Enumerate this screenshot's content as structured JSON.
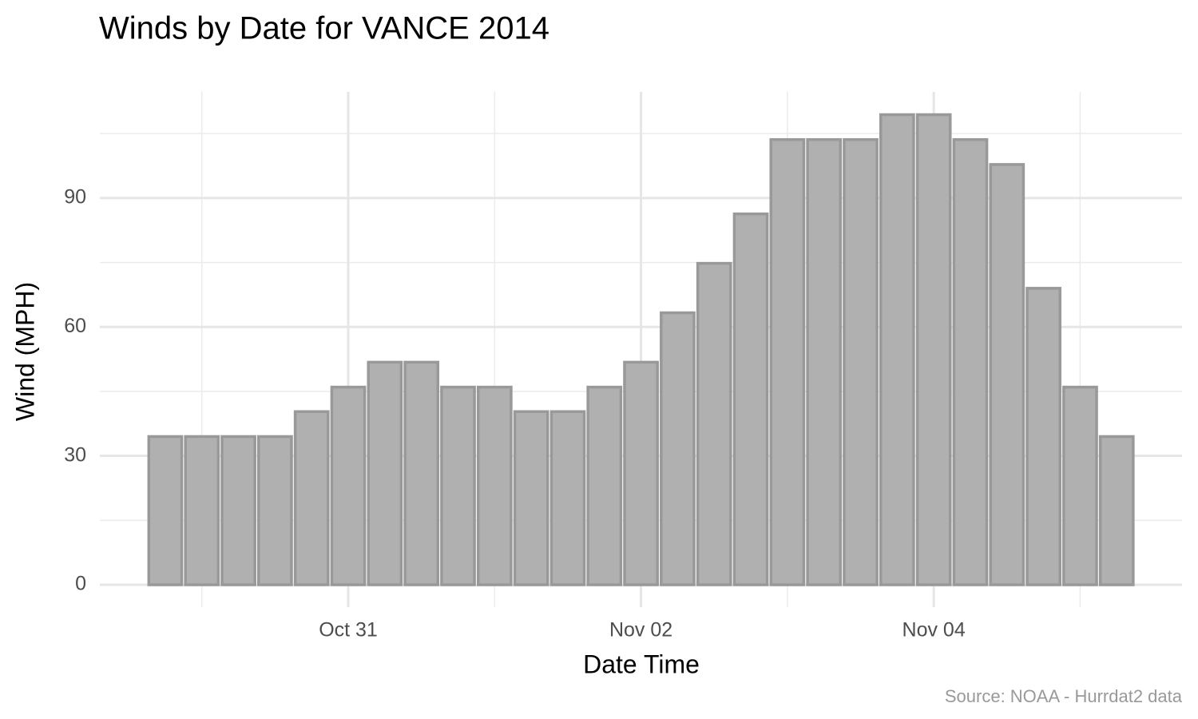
{
  "chart_data": {
    "type": "bar",
    "title": "Winds by Date for VANCE 2014",
    "x_label": "Date Time",
    "y_label": "Wind (MPH)",
    "caption": "Source: NOAA - Hurrdat2 data",
    "x": [
      -1.25,
      -1,
      -0.75,
      -0.5,
      -0.25,
      0,
      0.25,
      0.5,
      0.75,
      1,
      1.25,
      1.5,
      1.75,
      2,
      2.25,
      2.5,
      2.75,
      3,
      3.25,
      3.5,
      3.75,
      4,
      4.25,
      4.5,
      4.75,
      5,
      5.25
    ],
    "values": [
      34.5,
      34.5,
      34.5,
      34.5,
      40.3,
      46,
      51.8,
      51.8,
      46,
      46,
      40.3,
      40.3,
      46,
      51.8,
      63.3,
      74.8,
      86.3,
      103.6,
      103.6,
      103.6,
      109.4,
      109.4,
      103.6,
      97.8,
      69,
      46,
      34.5
    ],
    "color": "#b0b0b0",
    "edge_color": "#999999",
    "xlim": [
      -1.697,
      5.696
    ],
    "xticks": [
      {
        "value": 0,
        "label": "Oct 31"
      },
      {
        "value": 2,
        "label": "Nov 02"
      },
      {
        "value": 4,
        "label": "Nov 04"
      }
    ],
    "ylim": [
      -5.2,
      114.7
    ],
    "yticks": [
      0,
      30,
      60,
      90
    ],
    "grid": true
  }
}
